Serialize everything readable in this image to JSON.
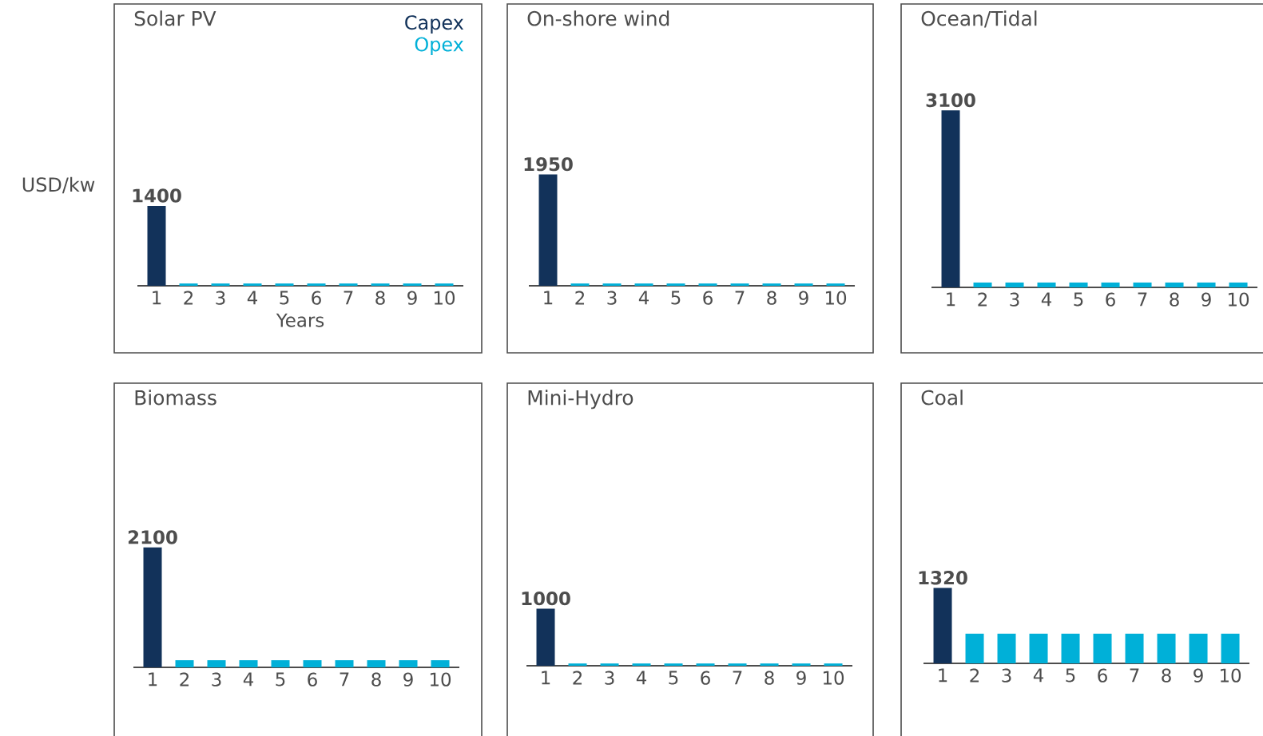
{
  "chart_data": [
    {
      "type": "bar",
      "title": "Solar PV",
      "xlabel": "Years",
      "ylabel": "USD/kw",
      "legend": "top right",
      "tick_labels": "x",
      "categories": [
        "1",
        "2",
        "3",
        "4",
        "5",
        "6",
        "7",
        "8",
        "9",
        "10"
      ],
      "series": [
        {
          "name": "Capex",
          "color": "#12325a",
          "values": [
            1400,
            null,
            null,
            null,
            null,
            null,
            null,
            null,
            null,
            null
          ],
          "value_labels": [
            "1400",
            null,
            null,
            null,
            null,
            null,
            null,
            null,
            null,
            null
          ]
        },
        {
          "name": "Opex",
          "color": "#00b0d8",
          "values": [
            null,
            40,
            40,
            40,
            40,
            40,
            40,
            40,
            40,
            40
          ]
        }
      ]
    },
    {
      "type": "bar",
      "title": "On-shore wind",
      "tick_labels": "x",
      "categories": [
        "1",
        "2",
        "3",
        "4",
        "5",
        "6",
        "7",
        "8",
        "9",
        "10"
      ],
      "series": [
        {
          "color": "#12325a",
          "values": [
            1950,
            null,
            null,
            null,
            null,
            null,
            null,
            null,
            null,
            null
          ],
          "value_labels": [
            "1950",
            null,
            null,
            null,
            null,
            null,
            null,
            null,
            null,
            null
          ]
        },
        {
          "color": "#00b0d8",
          "values": [
            null,
            40,
            40,
            40,
            40,
            40,
            40,
            40,
            40,
            40
          ]
        }
      ]
    },
    {
      "type": "bar",
      "title": "Ocean/Tidal",
      "tick_labels": "x",
      "categories": [
        "1",
        "2",
        "3",
        "4",
        "5",
        "6",
        "7",
        "8",
        "9",
        "10"
      ],
      "series": [
        {
          "color": "#12325a",
          "values": [
            3100,
            null,
            null,
            null,
            null,
            null,
            null,
            null,
            null,
            null
          ],
          "value_labels": [
            "3100",
            null,
            null,
            null,
            null,
            null,
            null,
            null,
            null,
            null
          ]
        },
        {
          "color": "#00b0d8",
          "values": [
            null,
            85,
            85,
            85,
            85,
            85,
            85,
            85,
            85,
            85
          ]
        }
      ]
    },
    {
      "type": "bar",
      "title": "Biomass",
      "tick_labels": "x",
      "categories": [
        "1",
        "2",
        "3",
        "4",
        "5",
        "6",
        "7",
        "8",
        "9",
        "10"
      ],
      "series": [
        {
          "color": "#12325a",
          "values": [
            2100,
            null,
            null,
            null,
            null,
            null,
            null,
            null,
            null,
            null
          ],
          "value_labels": [
            "2100",
            null,
            null,
            null,
            null,
            null,
            null,
            null,
            null,
            null
          ]
        },
        {
          "color": "#00b0d8",
          "values": [
            null,
            125,
            125,
            125,
            125,
            125,
            125,
            125,
            125,
            125
          ]
        }
      ]
    },
    {
      "type": "bar",
      "title": "Mini-Hydro",
      "tick_labels": "x",
      "categories": [
        "1",
        "2",
        "3",
        "4",
        "5",
        "6",
        "7",
        "8",
        "9",
        "10"
      ],
      "series": [
        {
          "color": "#12325a",
          "values": [
            1000,
            null,
            null,
            null,
            null,
            null,
            null,
            null,
            null,
            null
          ],
          "value_labels": [
            "1000",
            null,
            null,
            null,
            null,
            null,
            null,
            null,
            null,
            null
          ]
        },
        {
          "color": "#00b0d8",
          "values": [
            null,
            40,
            40,
            40,
            40,
            40,
            40,
            40,
            40,
            40
          ]
        }
      ]
    },
    {
      "type": "bar",
      "title": "Coal",
      "tick_labels": "x",
      "categories": [
        "1",
        "2",
        "3",
        "4",
        "5",
        "6",
        "7",
        "8",
        "9",
        "10"
      ],
      "series": [
        {
          "color": "#12325a",
          "values": [
            1320,
            null,
            null,
            null,
            null,
            null,
            null,
            null,
            null,
            null
          ],
          "value_labels": [
            "1320",
            null,
            null,
            null,
            null,
            null,
            null,
            null,
            null,
            null
          ]
        },
        {
          "color": "#00b0d8",
          "values": [
            null,
            520,
            520,
            520,
            520,
            520,
            520,
            520,
            520,
            520
          ]
        }
      ]
    }
  ]
}
